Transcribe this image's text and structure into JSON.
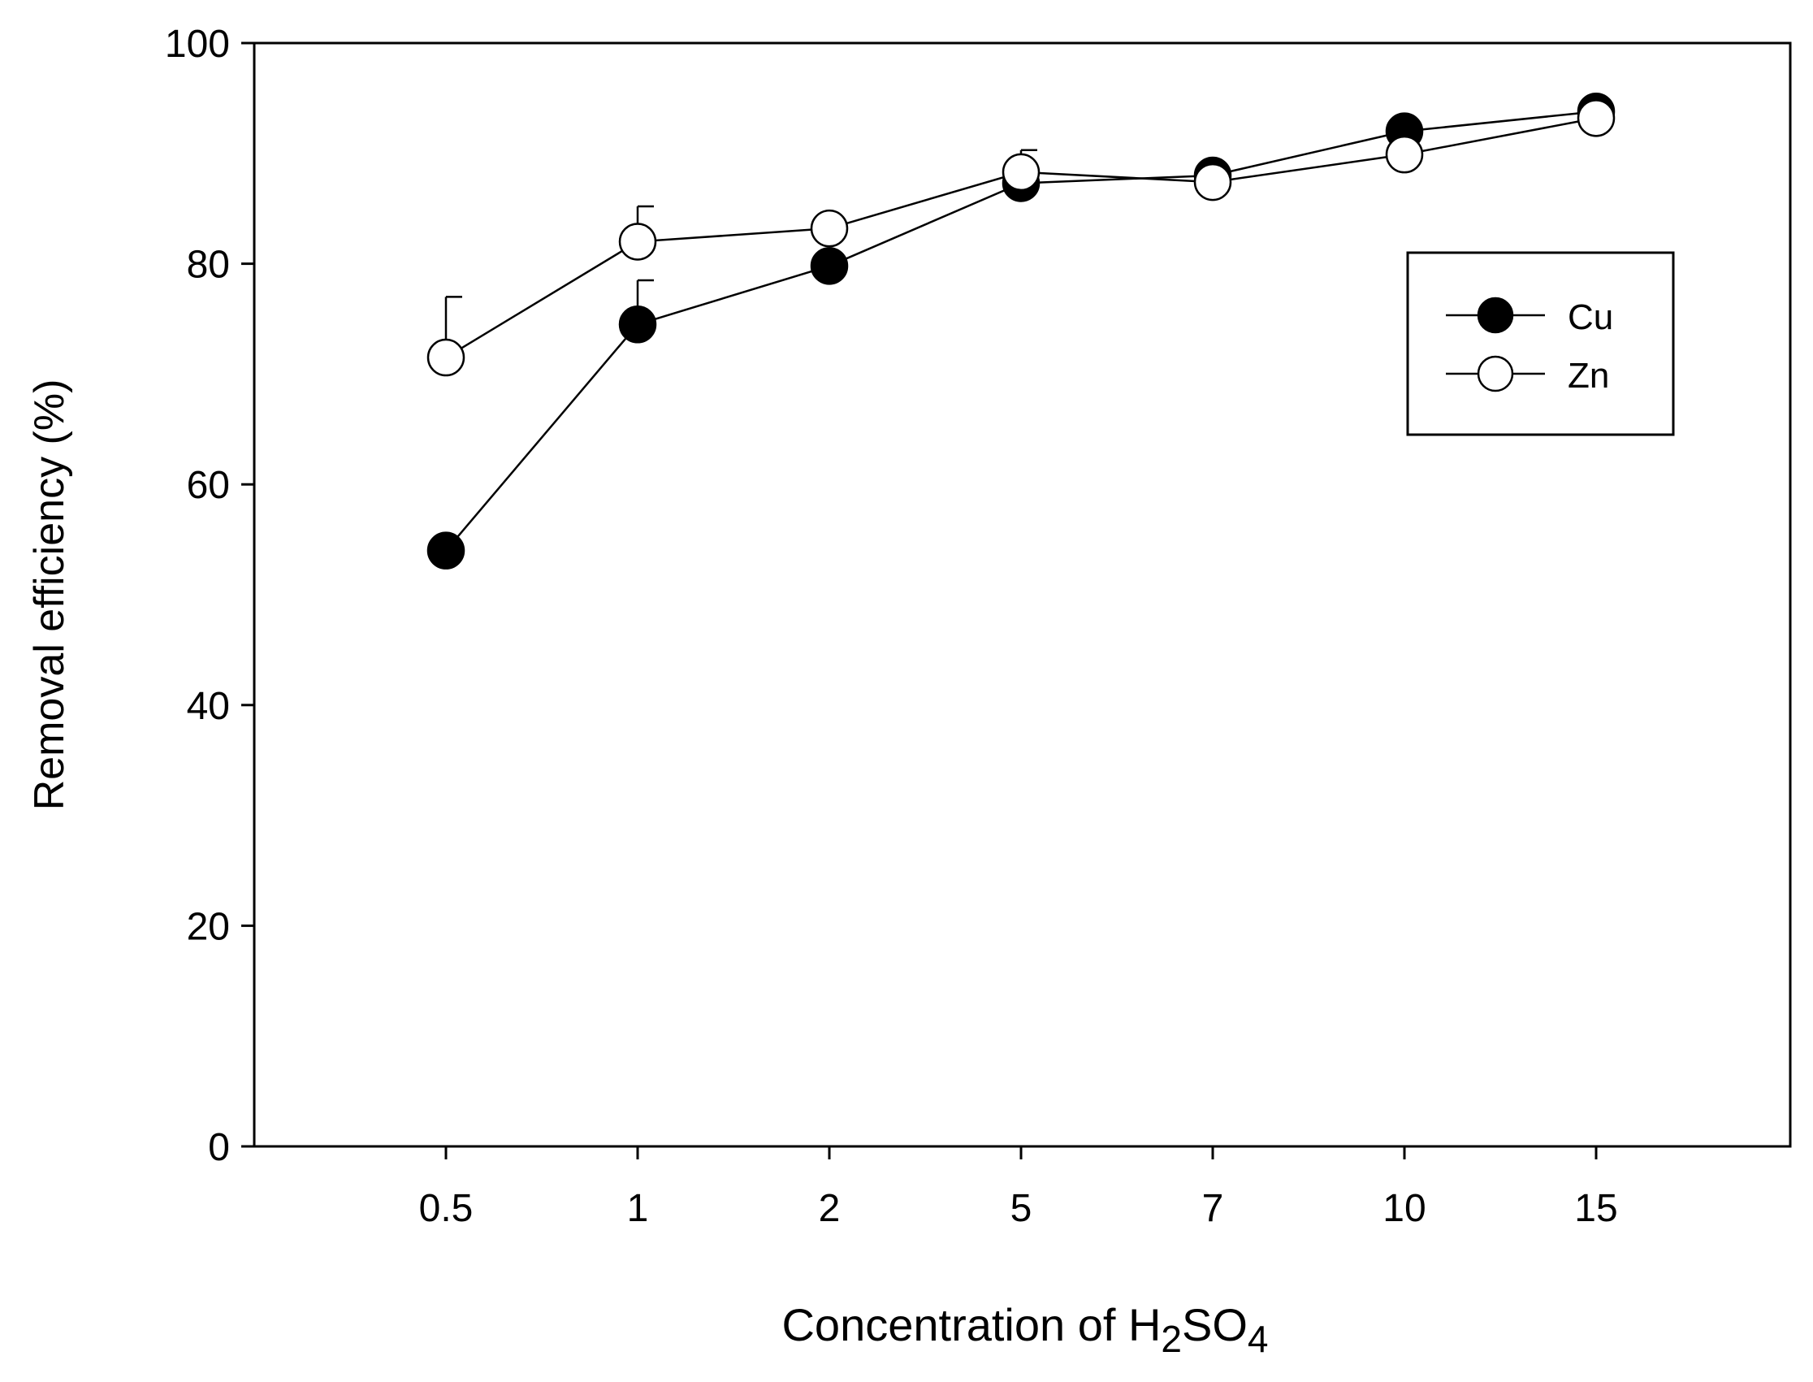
{
  "chart_data": {
    "type": "line",
    "title": "",
    "xlabel": {
      "main": "Concentration of H",
      "sub1": "2",
      "mid": "SO",
      "sub2": "4"
    },
    "ylabel": "Removal efficiency (%)",
    "categories": [
      "0.5",
      "1",
      "2",
      "5",
      "7",
      "10",
      "15"
    ],
    "ylim": [
      0,
      100
    ],
    "yticks": [
      "0",
      "20",
      "40",
      "60",
      "80",
      "100"
    ],
    "grid": false,
    "legend": {
      "position": "top-right",
      "entries": [
        "Cu",
        "Zn"
      ]
    },
    "series": [
      {
        "name": "Cu",
        "marker": "filled-circle",
        "values": [
          54.0,
          74.5,
          79.8,
          87.3,
          88.0,
          92.0,
          93.8
        ],
        "error_plus": [
          0,
          4.0,
          0,
          0,
          0,
          0,
          0
        ]
      },
      {
        "name": "Zn",
        "marker": "open-circle",
        "values": [
          71.5,
          82.0,
          83.2,
          88.3,
          87.4,
          89.9,
          93.2
        ],
        "error_plus": [
          5.5,
          3.2,
          0,
          2.0,
          0,
          0,
          0
        ]
      }
    ]
  }
}
